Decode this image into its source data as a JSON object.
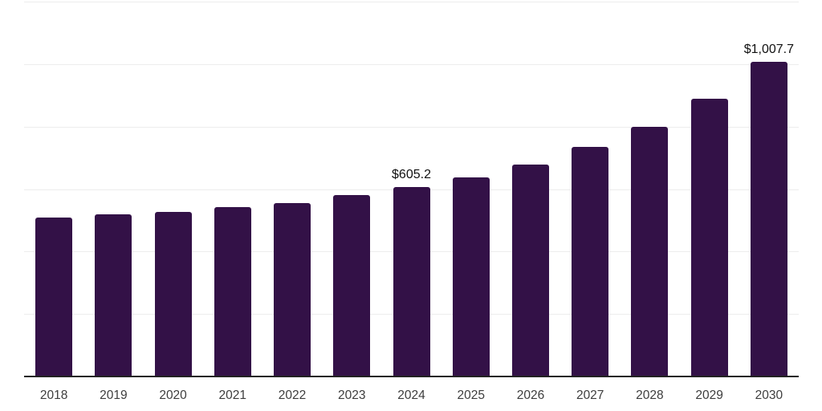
{
  "chart_data": {
    "type": "bar",
    "title": "",
    "xlabel": "",
    "ylabel": "",
    "categories": [
      "2018",
      "2019",
      "2020",
      "2021",
      "2022",
      "2023",
      "2024",
      "2025",
      "2026",
      "2027",
      "2028",
      "2029",
      "2030"
    ],
    "values": [
      508,
      518,
      527,
      541,
      556,
      580,
      605.2,
      636,
      678,
      736,
      800,
      890,
      1007.7
    ],
    "point_labels": [
      "",
      "",
      "",
      "",
      "",
      "",
      "$605.2",
      "",
      "",
      "",
      "",
      "",
      "$1,007.7"
    ],
    "ylim": [
      0,
      1200
    ],
    "gridline_step": 200,
    "grid": "horizontal",
    "legend": "none",
    "colors": {
      "bar": "#331147",
      "gridline": "#ededed",
      "axis": "#222222",
      "tick_label": "#3d3d3d",
      "value_label": "#111111"
    }
  }
}
